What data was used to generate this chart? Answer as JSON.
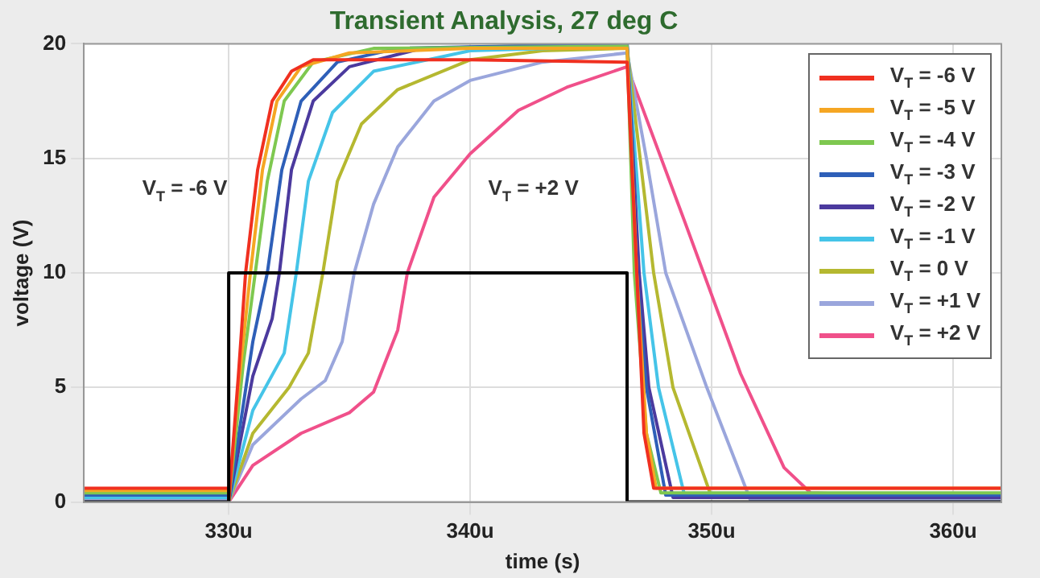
{
  "chart_data": {
    "type": "line",
    "title": "Transient Analysis, 27 deg C",
    "xlabel": "time (s)",
    "ylabel": "voltage (V)",
    "xlim": [
      324,
      362
    ],
    "xticks": [
      {
        "value": 330,
        "label": "330u"
      },
      {
        "value": 340,
        "label": "340u"
      },
      {
        "value": 350,
        "label": "350u"
      },
      {
        "value": 360,
        "label": "360u"
      }
    ],
    "ylim": [
      0,
      20
    ],
    "yticks": [
      0,
      5,
      10,
      15,
      20
    ],
    "grid": true,
    "legend": "top right",
    "marker": "none",
    "line_style": "solid",
    "annotations": [
      "V$_{T}$ = -6 V",
      "V$_{T}$ = +2 V"
    ],
    "series": [
      {
        "color": "#000000",
        "x": [
          324,
          330,
          330,
          346.5,
          346.5,
          362
        ],
        "values": [
          0,
          0,
          10,
          10,
          0,
          0
        ]
      },
      {
        "name": "V$_{T}$ = -6 V",
        "color": "#f03020",
        "x": [
          324,
          330,
          330,
          330.4,
          330.7,
          331.2,
          331.8,
          332.6,
          333.5,
          340,
          346.5,
          346.9,
          347.2,
          347.6,
          362
        ],
        "values": [
          0.6,
          0.6,
          0,
          5.5,
          10,
          14.5,
          17.5,
          18.8,
          19.3,
          19.3,
          19.2,
          10,
          3,
          0.6,
          0.6
        ]
      },
      {
        "name": "V$_{T}$ = -5 V",
        "color": "#f5a623",
        "x": [
          324,
          330,
          330,
          330.4,
          330.9,
          331.4,
          332,
          333,
          335,
          340,
          346.5,
          346.9,
          347.3,
          347.7,
          362
        ],
        "values": [
          0.5,
          0.5,
          0,
          5,
          10,
          14.5,
          17.5,
          19,
          19.6,
          19.8,
          19.8,
          10,
          3,
          0.6,
          0.6
        ]
      },
      {
        "name": "V$_{T}$ = -4 V",
        "color": "#7ec850",
        "x": [
          324,
          330,
          330,
          330.6,
          331.1,
          331.6,
          332.3,
          333.5,
          336,
          346.5,
          346.8,
          347.3,
          347.9,
          362
        ],
        "values": [
          0.4,
          0.4,
          0,
          6,
          10,
          14,
          17.5,
          19.2,
          19.8,
          19.9,
          10,
          3,
          0.4,
          0.4
        ]
      },
      {
        "name": "V$_{T}$ = -3 V",
        "color": "#2e5fb8",
        "x": [
          324,
          330,
          330,
          331,
          331.6,
          332.2,
          333,
          334.5,
          337,
          346.5,
          346.9,
          347.3,
          348.1,
          362
        ],
        "values": [
          0.3,
          0.3,
          0,
          7,
          10,
          14.5,
          17.5,
          19.2,
          19.8,
          20,
          10,
          5,
          0.3,
          0.3
        ]
      },
      {
        "name": "V$_{T}$ = -2 V",
        "color": "#4b3a9e",
        "x": [
          324,
          330,
          330,
          331,
          331.8,
          332.1,
          332.6,
          333.5,
          335,
          338,
          346.5,
          347,
          347.4,
          348.4,
          362
        ],
        "values": [
          0.3,
          0.3,
          0,
          5.5,
          8,
          10,
          14.5,
          17.5,
          19,
          19.8,
          20,
          10,
          5,
          0.2,
          0.2
        ]
      },
      {
        "name": "V$_{T}$ = -1 V",
        "color": "#45c4e8",
        "x": [
          324,
          330,
          330,
          331,
          332.3,
          332.8,
          333.3,
          334.3,
          336,
          340,
          346.5,
          347.2,
          347.8,
          348.9,
          362
        ],
        "values": [
          0.2,
          0.2,
          0,
          4,
          6.5,
          10,
          14,
          17,
          18.8,
          19.7,
          19.9,
          10,
          5,
          0.2,
          0.2
        ]
      },
      {
        "name": "V$_{T}$ = 0 V",
        "color": "#b5b830",
        "x": [
          324,
          330,
          330,
          331,
          332.5,
          333.3,
          333.9,
          334.5,
          335.5,
          337,
          340,
          343,
          346.5,
          347.6,
          348.4,
          350,
          362
        ],
        "values": [
          0.2,
          0.2,
          0,
          3,
          5,
          6.5,
          10,
          14,
          16.5,
          18,
          19.3,
          19.7,
          19.8,
          10,
          5,
          0.2,
          0.2
        ]
      },
      {
        "name": "V$_{T}$ = +1 V",
        "color": "#9aa6dc",
        "x": [
          324,
          330,
          330,
          331,
          333,
          334,
          334.7,
          335.2,
          336,
          337,
          338.5,
          340,
          343,
          346.5,
          347.3,
          348.1,
          349.8,
          351.6,
          362
        ],
        "values": [
          0.1,
          0.1,
          0,
          2.5,
          4.5,
          5.3,
          7,
          10,
          13,
          15.5,
          17.5,
          18.4,
          19.2,
          19.6,
          15,
          10,
          5,
          0.1,
          0.1
        ]
      },
      {
        "name": "V$_{T}$ = +2 V",
        "color": "#f0508a",
        "x": [
          324,
          330,
          330,
          331,
          333,
          335,
          336,
          337,
          337.4,
          338.5,
          340,
          342,
          344,
          346.5,
          348.9,
          351.2,
          353,
          354.1,
          362
        ],
        "values": [
          0.1,
          0.1,
          0,
          1.6,
          3,
          3.9,
          4.8,
          7.5,
          10,
          13.3,
          15.2,
          17.1,
          18.1,
          19,
          12.2,
          5.6,
          1.5,
          0.4,
          0.1
        ]
      }
    ]
  }
}
